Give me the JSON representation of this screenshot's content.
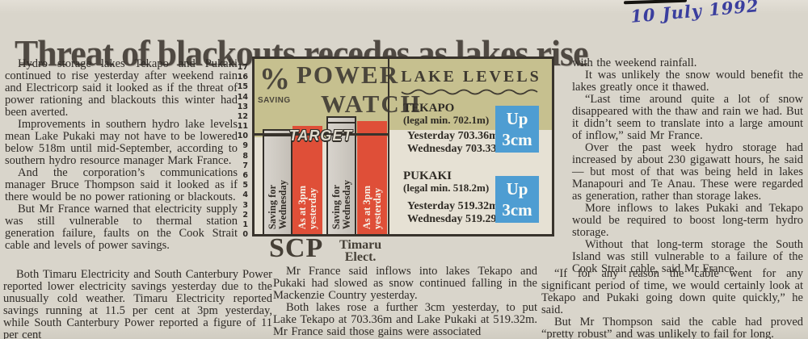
{
  "annotation": {
    "date_handwritten": "10 July 1992"
  },
  "headline": "Threat of blackouts recedes as lakes rise",
  "article": {
    "col1": [
      "Hydro storage lakes Tekapo and Pukaki continued to rise yesterday after weekend rain and Electricorp said it looked as if the threat of power rationing and blackouts this winter had been averted.",
      "Improvements in southern hydro lake levels mean Lake Pukaki may not have to be lowered below 518m until mid-September, according to southern hydro resource manager Mark France.",
      "And the corporation’s communications manager Bruce Thompson said it looked as if there would be no power rationing or blackouts.",
      "But Mr France warned that electricity supply was still vulnerable to thermal station generation failure, faults on the Cook Strait cable and levels of power savings."
    ],
    "col1_bottom": "Both Timaru Electricity and South Canterbury Power reported lower electricity savings yesterday due to the unusually cold weather. Timaru Electricity reported savings running at 11.5 per cent at 3pm yesterday, while South Canterbury Power reported a figure of 11 per cent",
    "col2": [
      "Mr France said inflows into lakes Tekapo and Pukaki had slowed as snow continued falling in the Mackenzie Country yesterday.",
      "Both lakes rose a further 3cm yesterday, to put Lake Tekapo at 703.36m and Lake Pukaki at 519.32m. Mr France said those gains were associated"
    ],
    "col3": [
      "with the weekend rainfall.",
      "It was unlikely the snow would benefit the lakes greatly once it thawed.",
      "“Last time around quite a lot of snow disappeared with the thaw and rain we had. But it didn’t seem to translate into a large amount of inflow,” said Mr France.",
      "Over the past week hydro storage had increased by about 230 gigawatt hours, he said — but most of that was being held in lakes Manapouri and Te Anau. These were regarded as generation, rather than storage lakes.",
      "More inflows to lakes Pukaki and Tekapo would be required to boost long-term hydro storage.",
      "Without that long-term storage the South Island was still vulnerable to a failure of the Cook Strait cable, said Mr France."
    ],
    "col3_bottom": [
      "“If for any reason the cable went for any significant period of time, we would certainly look at Tekapo and Pukaki going down quite quickly,” he said.",
      "But Mr Thompson said the cable had proved “pretty robust” and was unlikely to fail for long."
    ]
  },
  "infographic": {
    "percent_symbol": "%",
    "saving_label": "SAVING",
    "title_line1": "POWER",
    "title_line2": "WATCH",
    "target_label": "TARGET",
    "group_labels": {
      "scp": "SCP",
      "timaru_line1": "Timaru",
      "timaru_line2": "Elect."
    },
    "lake_levels": {
      "title": "LAKE LEVELS",
      "lakes": [
        {
          "name": "TEKAPO",
          "legal_min": "(legal min. 702.1m)",
          "yesterday": "Yesterday 703.36m",
          "wednesday": "Wednesday 703.33m",
          "badge_line1": "Up",
          "badge_line2": "3cm"
        },
        {
          "name": "PUKAKI",
          "legal_min": "(legal min. 518.2m)",
          "yesterday": "Yesterday 519.32m",
          "wednesday": "Wednesday 519.29m",
          "badge_line1": "Up",
          "badge_line2": "3cm"
        }
      ]
    }
  },
  "chart_data": {
    "type": "bar",
    "title": "% SAVING POWER WATCH",
    "ylabel": "% saving",
    "categories": [
      "SCP",
      "Timaru Elect."
    ],
    "series": [
      {
        "name": "Saving for Wednesday",
        "name_line1": "Saving for",
        "name_line2": "Wednesday",
        "values": [
          10.7,
          12
        ]
      },
      {
        "name": "As at 3pm yesterday",
        "name_line1": "As at 3pm",
        "name_line2": "yesterday",
        "values": [
          11,
          11.5
        ]
      }
    ],
    "target": 10,
    "ylim": [
      0,
      17
    ],
    "ticks": [
      17,
      16,
      15,
      14,
      13,
      12,
      11,
      10,
      9,
      8,
      7,
      6,
      5,
      4,
      3,
      2,
      1,
      0
    ],
    "grid": false,
    "legend_position": "on-bars"
  },
  "colors": {
    "paper": "#d9d5cb",
    "ink": "#2e2a26",
    "headline": "#4f4942",
    "frame": "#38332c",
    "khaki": "#c6c08f",
    "panel_light": "#e6e1d4",
    "red": "#df4f38",
    "blue": "#4e9dd2",
    "pen": "#3a3e9e"
  }
}
